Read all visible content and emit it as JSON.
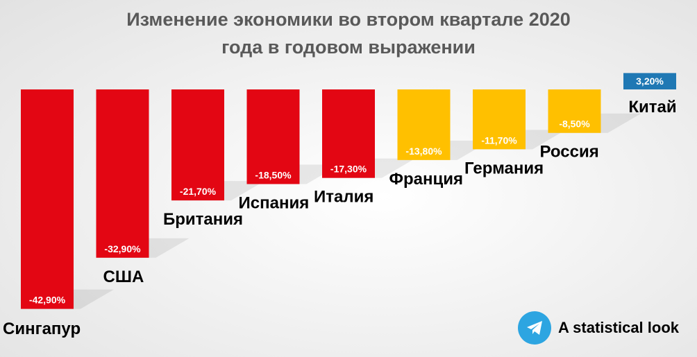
{
  "title": {
    "line1": "Изменение экономики во втором квартале 2020",
    "line2": "года в годовом выражении"
  },
  "footer": {
    "text": "A statistical look",
    "icon": "telegram-icon"
  },
  "colors": {
    "strong_decline": "#e30613",
    "moderate_decline": "#ffc000",
    "growth": "#1f78b4",
    "title": "#595959"
  },
  "chart_data": {
    "type": "bar",
    "categories": [
      "Сингапур",
      "США",
      "Британия",
      "Испания",
      "Италия",
      "Франция",
      "Германия",
      "Россия",
      "Китай"
    ],
    "values": [
      -42.9,
      -32.9,
      -21.7,
      -18.5,
      -17.3,
      -13.8,
      -11.7,
      -8.5,
      3.2
    ],
    "labels": [
      "-42,90%",
      "-32,90%",
      "-21,70%",
      "-18,50%",
      "-17,30%",
      "-13,80%",
      "-11,70%",
      "-8,50%",
      "3,20%"
    ],
    "colors": [
      "#e30613",
      "#e30613",
      "#e30613",
      "#e30613",
      "#e30613",
      "#ffc000",
      "#ffc000",
      "#ffc000",
      "#1f78b4"
    ],
    "title": "Изменение экономики во втором квартале 2020 года в годовом выражении",
    "xlabel": "",
    "ylabel": "",
    "grid": false,
    "legend": "none"
  }
}
